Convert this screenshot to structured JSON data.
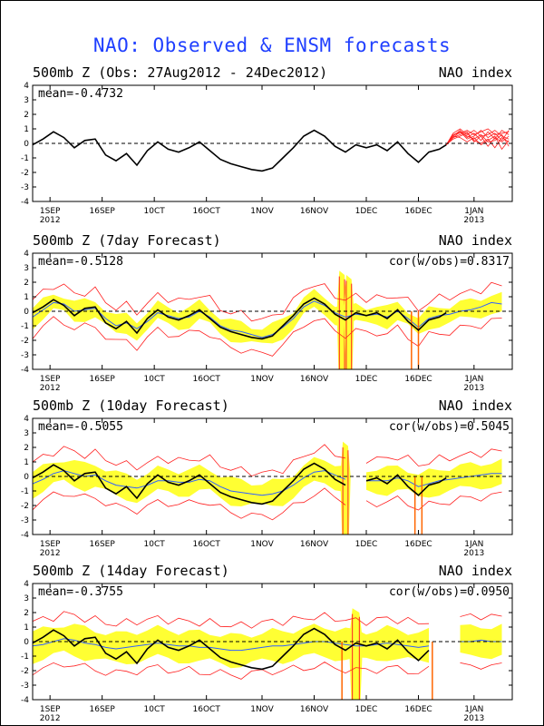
{
  "title": "NAO: Observed & ENSM forecasts",
  "colors": {
    "title": "#1f3fff",
    "observed": "#000000",
    "ensemble_members": "#ff2020",
    "ensemble_spread": "#ffff33",
    "ensemble_mean": "#3060ff",
    "vertical_marks": "#ff6600"
  },
  "axis": {
    "y_ticks": [
      "4",
      "3",
      "2",
      "1",
      "0",
      "-1",
      "-2",
      "-3",
      "-4"
    ],
    "x_ticks": [
      {
        "label": "1SEP",
        "year": "2012",
        "day": 5
      },
      {
        "label": "16SEP",
        "year": "",
        "day": 20
      },
      {
        "label": "10CT",
        "year": "",
        "day": 35
      },
      {
        "label": "16OCT",
        "year": "",
        "day": 50
      },
      {
        "label": "1NOV",
        "year": "",
        "day": 66
      },
      {
        "label": "16NOV",
        "year": "",
        "day": 81
      },
      {
        "label": "1DEC",
        "year": "",
        "day": 96
      },
      {
        "label": "16DEC",
        "year": "",
        "day": 111
      },
      {
        "label": "1JAN",
        "year": "2013",
        "day": 127
      }
    ]
  },
  "chart_data": [
    {
      "type": "line",
      "title": "500mb Z (Obs: 27Aug2012 - 24Dec2012)",
      "right_label": "NAO index",
      "mean_label": "mean=-0.4732",
      "corr_label": "",
      "xlim": [
        0,
        138
      ],
      "ylim": [
        -4,
        4
      ],
      "x_unit": "days since 27 Aug 2012",
      "observed": {
        "x": [
          0,
          3,
          6,
          9,
          12,
          15,
          18,
          21,
          24,
          27,
          30,
          33,
          36,
          39,
          42,
          45,
          48,
          51,
          54,
          57,
          60,
          63,
          66,
          69,
          72,
          75,
          78,
          81,
          84,
          87,
          90,
          93,
          96,
          99,
          102,
          105,
          108,
          111,
          114,
          117,
          119
        ],
        "y": [
          -0.1,
          0.3,
          0.8,
          0.4,
          -0.3,
          0.2,
          0.3,
          -0.8,
          -1.2,
          -0.7,
          -1.5,
          -0.5,
          0.1,
          -0.4,
          -0.6,
          -0.3,
          0.1,
          -0.5,
          -1.1,
          -1.4,
          -1.6,
          -1.8,
          -1.9,
          -1.7,
          -1.0,
          -0.3,
          0.5,
          0.9,
          0.5,
          -0.2,
          -0.6,
          -0.1,
          -0.3,
          -0.1,
          -0.5,
          0.1,
          -0.7,
          -1.3,
          -0.6,
          -0.4,
          -0.1
        ]
      },
      "forecast_members": {
        "x": [
          119,
          121,
          123,
          125,
          127,
          129,
          131,
          133,
          135,
          137
        ],
        "members": [
          [
            -0.1,
            0.5,
            0.9,
            0.4,
            0.7,
            0.2,
            0.8,
            0.3,
            0.9,
            0.6
          ],
          [
            -0.1,
            0.4,
            0.6,
            0.8,
            0.1,
            0.5,
            -0.2,
            0.4,
            0.1,
            0.5
          ],
          [
            -0.1,
            0.6,
            0.8,
            0.3,
            0.5,
            0.9,
            0.4,
            0.7,
            0.2,
            0.9
          ],
          [
            -0.1,
            0.3,
            0.5,
            0.7,
            0.2,
            0.0,
            0.3,
            -0.3,
            0.4,
            0.1
          ],
          [
            -0.1,
            0.7,
            1.0,
            0.6,
            0.9,
            0.5,
            0.6,
            0.9,
            0.5,
            0.3
          ],
          [
            -0.1,
            0.5,
            0.4,
            0.1,
            0.4,
            -0.1,
            0.2,
            0.5,
            -0.4,
            0.2
          ],
          [
            -0.1,
            0.6,
            0.7,
            0.9,
            0.6,
            0.8,
            1.0,
            0.6,
            0.7,
            0.8
          ],
          [
            -0.1,
            0.4,
            0.8,
            0.5,
            0.3,
            0.6,
            0.1,
            0.2,
            0.6,
            -0.2
          ]
        ]
      },
      "gaps": []
    },
    {
      "type": "line",
      "title": "500mb Z (7day Forecast)",
      "right_label": "NAO index",
      "mean_label": "mean=-0.5128",
      "corr_label": "cor(w/obs)=0.8317",
      "xlim": [
        0,
        138
      ],
      "ylim": [
        -4,
        4
      ],
      "x_unit": "days since 27 Aug 2012",
      "observed": {
        "x": [
          0,
          3,
          6,
          9,
          12,
          15,
          18,
          21,
          24,
          27,
          30,
          33,
          36,
          39,
          42,
          45,
          48,
          51,
          54,
          57,
          60,
          63,
          66,
          69,
          72,
          75,
          78,
          81,
          84,
          87,
          90,
          93,
          96,
          99,
          102,
          105,
          108,
          111,
          114,
          117,
          119
        ],
        "y": [
          -0.1,
          0.3,
          0.8,
          0.4,
          -0.3,
          0.2,
          0.3,
          -0.8,
          -1.2,
          -0.7,
          -1.5,
          -0.5,
          0.1,
          -0.4,
          -0.6,
          -0.3,
          0.1,
          -0.5,
          -1.1,
          -1.4,
          -1.6,
          -1.8,
          -1.9,
          -1.7,
          -1.0,
          -0.3,
          0.5,
          0.9,
          0.5,
          -0.2,
          -0.6,
          -0.1,
          -0.3,
          -0.1,
          -0.5,
          0.1,
          -0.7,
          -1.3,
          -0.6,
          -0.4,
          -0.1
        ]
      },
      "forecast_x": [
        0,
        3,
        6,
        9,
        12,
        15,
        18,
        21,
        24,
        27,
        30,
        33,
        36,
        39,
        42,
        45,
        48,
        51,
        54,
        57,
        60,
        63,
        66,
        69,
        72,
        75,
        78,
        81,
        84,
        87,
        90,
        93,
        96,
        99,
        102,
        105,
        108,
        111,
        114,
        117,
        120,
        123,
        126,
        129,
        132,
        135
      ],
      "forecast_mean": [
        -0.4,
        0.1,
        0.6,
        0.5,
        0.0,
        0.1,
        0.2,
        -0.5,
        -1.0,
        -0.8,
        -1.2,
        -0.7,
        -0.1,
        -0.3,
        -0.5,
        -0.4,
        0.0,
        -0.4,
        -1.0,
        -1.3,
        -1.4,
        -1.6,
        -1.8,
        -1.6,
        -1.1,
        -0.5,
        0.3,
        0.7,
        0.4,
        -0.1,
        -0.4,
        -0.2,
        -0.3,
        -0.2,
        -0.4,
        0.0,
        -0.5,
        -1.1,
        -0.5,
        -0.3,
        -0.2,
        0.0,
        0.1,
        0.3,
        0.6,
        0.5
      ],
      "spread_half": 0.6,
      "envelope_half": 1.2,
      "spikes": [
        {
          "x": 89,
          "ylo": -4.0,
          "yhi": 2.8,
          "width": 3
        },
        {
          "x": 91,
          "ylo": -4.0,
          "yhi": 2.5,
          "width": 3
        }
      ],
      "marks": [
        {
          "x": 109
        },
        {
          "x": 111
        }
      ],
      "gaps": [
        [
          90.5,
          92.5
        ]
      ]
    },
    {
      "type": "line",
      "title": "500mb Z (10day Forecast)",
      "right_label": "NAO index",
      "mean_label": "mean=-0.5055",
      "corr_label": "cor(w/obs)=0.5045",
      "xlim": [
        0,
        138
      ],
      "ylim": [
        -4,
        4
      ],
      "x_unit": "days since 27 Aug 2012",
      "observed": {
        "x": [
          0,
          3,
          6,
          9,
          12,
          15,
          18,
          21,
          24,
          27,
          30,
          33,
          36,
          39,
          42,
          45,
          48,
          51,
          54,
          57,
          60,
          63,
          66,
          69,
          72,
          75,
          78,
          81,
          84,
          87,
          90,
          93,
          96,
          99,
          102,
          105,
          108,
          111,
          114,
          117,
          119
        ],
        "y": [
          -0.1,
          0.3,
          0.8,
          0.4,
          -0.3,
          0.2,
          0.3,
          -0.8,
          -1.2,
          -0.7,
          -1.5,
          -0.5,
          0.1,
          -0.4,
          -0.6,
          -0.3,
          0.1,
          -0.5,
          -1.1,
          -1.4,
          -1.6,
          -1.8,
          -1.9,
          -1.7,
          -1.0,
          -0.3,
          0.5,
          0.9,
          0.5,
          -0.2,
          -0.6,
          -0.1,
          -0.3,
          -0.1,
          -0.5,
          0.1,
          -0.7,
          -1.3,
          -0.6,
          -0.4,
          -0.1
        ]
      },
      "forecast_x": [
        0,
        3,
        6,
        9,
        12,
        15,
        18,
        21,
        24,
        27,
        30,
        33,
        36,
        39,
        42,
        45,
        48,
        51,
        54,
        57,
        60,
        63,
        66,
        69,
        72,
        75,
        78,
        81,
        84,
        87,
        90,
        93,
        96,
        99,
        102,
        105,
        108,
        111,
        114,
        117,
        120,
        123,
        126,
        129,
        132,
        135
      ],
      "forecast_mean": [
        -0.5,
        -0.2,
        0.2,
        0.4,
        0.2,
        0.0,
        0.1,
        -0.3,
        -0.6,
        -0.7,
        -0.8,
        -0.6,
        -0.3,
        -0.3,
        -0.4,
        -0.4,
        -0.2,
        -0.3,
        -0.7,
        -1.0,
        -1.1,
        -1.2,
        -1.3,
        -1.2,
        -1.0,
        -0.6,
        -0.1,
        0.3,
        0.4,
        0.1,
        -0.2,
        -0.2,
        -0.3,
        -0.3,
        -0.3,
        -0.1,
        -0.3,
        -0.7,
        -0.5,
        -0.3,
        -0.2,
        -0.1,
        0.0,
        0.1,
        0.2,
        0.2
      ],
      "spread_half": 0.8,
      "envelope_half": 1.5,
      "spikes": [
        {
          "x": 90,
          "ylo": -4.0,
          "yhi": 2.4,
          "width": 3
        }
      ],
      "marks": [
        {
          "x": 110
        },
        {
          "x": 112
        }
      ],
      "gaps": [
        [
          91.5,
          94
        ]
      ]
    },
    {
      "type": "line",
      "title": "500mb Z (14day Forecast)",
      "right_label": "NAO index",
      "mean_label": "mean=-0.3755",
      "corr_label": "cor(w/obs)=0.0950",
      "xlim": [
        0,
        138
      ],
      "ylim": [
        -4,
        4
      ],
      "x_unit": "days since 27 Aug 2012",
      "observed": {
        "x": [
          0,
          3,
          6,
          9,
          12,
          15,
          18,
          21,
          24,
          27,
          30,
          33,
          36,
          39,
          42,
          45,
          48,
          51,
          54,
          57,
          60,
          63,
          66,
          69,
          72,
          75,
          78,
          81,
          84,
          87,
          90,
          93,
          96,
          99,
          102,
          105,
          108,
          111,
          114,
          117,
          119
        ],
        "y": [
          -0.1,
          0.3,
          0.8,
          0.4,
          -0.3,
          0.2,
          0.3,
          -0.8,
          -1.2,
          -0.7,
          -1.5,
          -0.5,
          0.1,
          -0.4,
          -0.6,
          -0.3,
          0.1,
          -0.5,
          -1.1,
          -1.4,
          -1.6,
          -1.8,
          -1.9,
          -1.7,
          -1.0,
          -0.3,
          0.5,
          0.9,
          0.5,
          -0.2,
          -0.6,
          -0.1,
          -0.3,
          -0.1,
          -0.5,
          0.1,
          -0.7,
          -1.3,
          -0.6,
          -0.4,
          -0.1
        ]
      },
      "forecast_x": [
        0,
        3,
        6,
        9,
        12,
        15,
        18,
        21,
        24,
        27,
        30,
        33,
        36,
        39,
        42,
        45,
        48,
        51,
        54,
        57,
        60,
        63,
        66,
        69,
        72,
        75,
        78,
        81,
        84,
        87,
        90,
        93,
        96,
        99,
        102,
        105,
        108,
        111,
        114,
        117,
        120,
        123,
        126,
        129,
        132,
        135
      ],
      "forecast_mean": [
        -0.3,
        -0.2,
        0.0,
        0.2,
        0.1,
        -0.1,
        -0.2,
        -0.4,
        -0.5,
        -0.4,
        -0.3,
        -0.2,
        -0.1,
        -0.2,
        -0.3,
        -0.3,
        -0.4,
        -0.4,
        -0.5,
        -0.6,
        -0.6,
        -0.5,
        -0.4,
        -0.3,
        -0.3,
        -0.2,
        -0.1,
        0.0,
        0.0,
        -0.1,
        -0.2,
        -0.3,
        -0.3,
        -0.2,
        -0.1,
        -0.2,
        -0.3,
        -0.4,
        -0.3,
        -0.2,
        -0.1,
        0.0,
        0.0,
        0.1,
        0.0,
        0.0
      ],
      "spread_half": 1.0,
      "envelope_half": 1.7,
      "spikes": [
        {
          "x": 93,
          "ylo": -4.0,
          "yhi": 2.3,
          "width": 4
        }
      ],
      "marks": [
        {
          "x": 89
        },
        {
          "x": 115
        }
      ],
      "gaps": [
        [
          116.5,
          120.5
        ]
      ]
    }
  ]
}
